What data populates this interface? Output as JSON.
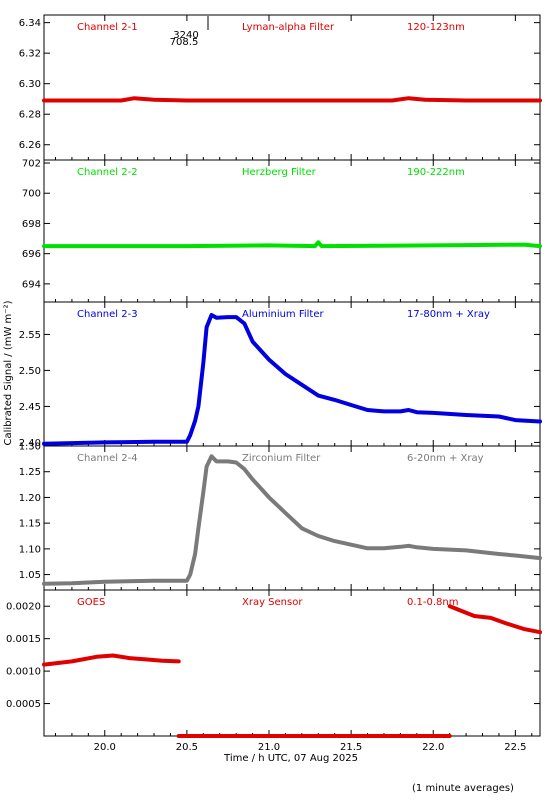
{
  "figure": {
    "xlabel": "Time / h UTC, 07 Aug 2025",
    "ylabel": "Calibrated Signal / (mW m⁻²)",
    "footnote": "(1 minute averages)",
    "xlim": [
      19.63,
      22.65
    ],
    "xticks": [
      20.0,
      20.5,
      21.0,
      21.5,
      22.0,
      22.5
    ],
    "xtick_labels": [
      "20.0",
      "20.5",
      "21.0",
      "21.5",
      "22.0",
      "22.5"
    ],
    "inset_annotation": {
      "line1": "3240",
      "line2": "708.5"
    }
  },
  "chart_data": [
    {
      "type": "scatter",
      "channel_label": "Channel 2-1",
      "filter_label": "Lyman-alpha Filter",
      "band_label": "120-123nm",
      "color": "#e00000",
      "ylim": [
        6.25,
        6.345
      ],
      "yticks": [
        6.26,
        6.28,
        6.3,
        6.32,
        6.34
      ],
      "ytick_labels": [
        "6.26",
        "6.28",
        "6.30",
        "6.32",
        "6.34"
      ],
      "series": [
        {
          "x": [
            19.63,
            20.0,
            20.1,
            20.18,
            20.3,
            20.5,
            21.0,
            21.5,
            21.75,
            21.85,
            21.95,
            22.2,
            22.65
          ],
          "y": [
            6.289,
            6.289,
            6.289,
            6.2905,
            6.2895,
            6.289,
            6.289,
            6.289,
            6.289,
            6.2905,
            6.2895,
            6.289,
            6.289
          ]
        }
      ]
    },
    {
      "type": "scatter",
      "channel_label": "Channel 2-2",
      "filter_label": "Herzberg Filter",
      "band_label": "190-222nm",
      "color": "#00e000",
      "ylim": [
        692.8,
        702.2
      ],
      "yticks": [
        694,
        696,
        698,
        700,
        702
      ],
      "ytick_labels": [
        "694",
        "696",
        "698",
        "700",
        "702"
      ],
      "series": [
        {
          "x": [
            19.63,
            20.5,
            21.0,
            21.28,
            21.3,
            21.32,
            22.0,
            22.55,
            22.65
          ],
          "y": [
            696.5,
            696.5,
            696.55,
            696.5,
            696.75,
            696.5,
            696.55,
            696.6,
            696.5
          ]
        }
      ]
    },
    {
      "type": "scatter",
      "channel_label": "Channel 2-3",
      "filter_label": "Aluminium Filter",
      "band_label": "17-80nm + Xray",
      "color": "#0000e0",
      "ylim": [
        2.395,
        2.595
      ],
      "yticks": [
        2.4,
        2.45,
        2.5,
        2.55
      ],
      "ytick_labels": [
        "2.40",
        "2.45",
        "2.50",
        "2.55"
      ],
      "series": [
        {
          "x": [
            19.63,
            19.8,
            20.0,
            20.3,
            20.5,
            20.52,
            20.55,
            20.57,
            20.6,
            20.62,
            20.65,
            20.68,
            20.75,
            20.8,
            20.85,
            20.9,
            21.0,
            21.1,
            21.2,
            21.3,
            21.4,
            21.5,
            21.6,
            21.7,
            21.8,
            21.85,
            21.9,
            22.0,
            22.2,
            22.4,
            22.5,
            22.65
          ],
          "y": [
            2.398,
            2.399,
            2.4,
            2.401,
            2.401,
            2.41,
            2.43,
            2.45,
            2.51,
            2.56,
            2.577,
            2.573,
            2.574,
            2.574,
            2.565,
            2.54,
            2.515,
            2.495,
            2.48,
            2.465,
            2.459,
            2.452,
            2.445,
            2.443,
            2.443,
            2.445,
            2.442,
            2.441,
            2.438,
            2.436,
            2.431,
            2.429
          ]
        }
      ]
    },
    {
      "type": "scatter",
      "channel_label": "Channel 2-4",
      "filter_label": "Zirconium Filter",
      "band_label": "6-20nm + Xray",
      "color": "#7a7a7a",
      "ylim": [
        1.02,
        1.3
      ],
      "yticks": [
        1.05,
        1.1,
        1.15,
        1.2,
        1.25,
        1.3
      ],
      "ytick_labels": [
        "1.05",
        "1.10",
        "1.15",
        "1.20",
        "1.25",
        "1.30"
      ],
      "series": [
        {
          "x": [
            19.63,
            19.8,
            20.0,
            20.3,
            20.5,
            20.52,
            20.55,
            20.57,
            20.6,
            20.62,
            20.65,
            20.68,
            20.75,
            20.8,
            20.85,
            20.9,
            21.0,
            21.1,
            21.2,
            21.3,
            21.4,
            21.5,
            21.6,
            21.7,
            21.8,
            21.85,
            21.9,
            22.0,
            22.2,
            22.4,
            22.5,
            22.65
          ],
          "y": [
            1.032,
            1.033,
            1.036,
            1.038,
            1.038,
            1.05,
            1.09,
            1.14,
            1.21,
            1.26,
            1.28,
            1.27,
            1.27,
            1.268,
            1.255,
            1.235,
            1.2,
            1.17,
            1.14,
            1.125,
            1.115,
            1.108,
            1.101,
            1.101,
            1.104,
            1.106,
            1.103,
            1.1,
            1.097,
            1.09,
            1.087,
            1.082
          ]
        }
      ]
    },
    {
      "type": "scatter",
      "channel_label": "GOES",
      "filter_label": "Xray Sensor",
      "band_label": "0.1-0.8nm",
      "color": "#e00000",
      "ylim": [
        0.0,
        0.00225
      ],
      "yticks": [
        0.0005,
        0.001,
        0.0015,
        0.002
      ],
      "ytick_labels": [
        "0.0005",
        "0.0010",
        "0.0015",
        "0.0020"
      ],
      "series": [
        {
          "x": [
            19.63,
            19.8,
            19.95,
            20.05,
            20.15,
            20.25,
            20.35,
            20.45
          ],
          "y": [
            0.0011,
            0.00115,
            0.00122,
            0.00124,
            0.0012,
            0.00118,
            0.00116,
            0.00115
          ]
        },
        {
          "x": [
            20.45,
            21.0,
            21.5,
            22.1
          ],
          "y": [
            0.0,
            0.0,
            0.0,
            0.0
          ]
        },
        {
          "x": [
            22.1,
            22.15,
            22.25,
            22.35,
            22.45,
            22.55,
            22.65
          ],
          "y": [
            0.002,
            0.00195,
            0.00185,
            0.00182,
            0.00173,
            0.00165,
            0.0016
          ]
        }
      ]
    }
  ]
}
